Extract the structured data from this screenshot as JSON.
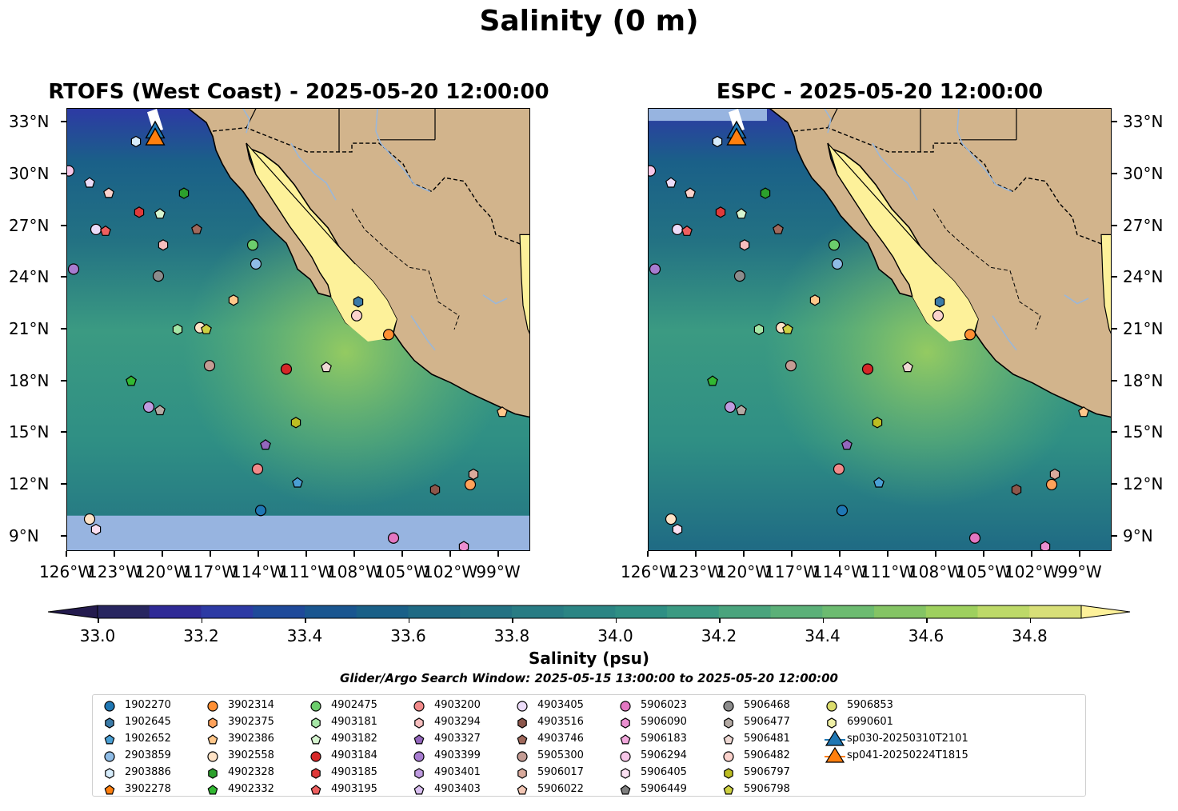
{
  "title": "Salinity (0 m)",
  "panels": [
    {
      "title": "RTOFS (West Coast) - 2025-05-20 12:00:00"
    },
    {
      "title": "ESPC - 2025-05-20 12:00:00"
    }
  ],
  "map": {
    "lat_ticks": [
      "33°N",
      "30°N",
      "27°N",
      "24°N",
      "21°N",
      "18°N",
      "15°N",
      "12°N",
      "9°N"
    ],
    "lon_ticks": [
      "126°W",
      "123°W",
      "120°W",
      "117°W",
      "114°W",
      "111°W",
      "108°W",
      "105°W",
      "102°W",
      "99°W"
    ],
    "land_color": "#d2b48c",
    "gulf_color": "#fdf19a",
    "nodata_color": "#97b4e0",
    "river_color": "#9bb7d8"
  },
  "colorbar": {
    "label": "Salinity (psu)",
    "ticks": [
      "33.0",
      "33.2",
      "33.4",
      "33.6",
      "33.8",
      "34.0",
      "34.2",
      "34.4",
      "34.6",
      "34.8"
    ],
    "colors": [
      "#282660",
      "#2f2a96",
      "#2d3aa4",
      "#1f4a9a",
      "#1a5690",
      "#1a6088",
      "#1f6a84",
      "#237283",
      "#287c84",
      "#2b8584",
      "#2f8f84",
      "#3b9a82",
      "#4aa47d",
      "#5bb078",
      "#6cbb70",
      "#84c464",
      "#9ed05e",
      "#bdd968",
      "#d8df78"
    ],
    "under_color": "#241b4e",
    "over_color": "#fdf19a"
  },
  "search_window": "Glider/Argo Search Window: 2025-05-15 13:00:00 to 2025-05-20 12:00:00",
  "legend": [
    {
      "label": "1902270",
      "color": "#1f77b4",
      "shape": "circle"
    },
    {
      "label": "1902645",
      "color": "#3b7ba8",
      "shape": "hexagon"
    },
    {
      "label": "1902652",
      "color": "#4a9fd4",
      "shape": "pentagon"
    },
    {
      "label": "2903859",
      "color": "#8fbce6",
      "shape": "circle"
    },
    {
      "label": "2903886",
      "color": "#d6ecfb",
      "shape": "hexagon"
    },
    {
      "label": "3902278",
      "color": "#ff7f0e",
      "shape": "pentagon"
    },
    {
      "label": "3902314",
      "color": "#ff8f33",
      "shape": "circle"
    },
    {
      "label": "3902375",
      "color": "#ffa25a",
      "shape": "hexagon"
    },
    {
      "label": "3902386",
      "color": "#ffc78a",
      "shape": "pentagon"
    },
    {
      "label": "3902558",
      "color": "#ffe3c6",
      "shape": "circle"
    },
    {
      "label": "4902328",
      "color": "#2ca02c",
      "shape": "hexagon"
    },
    {
      "label": "4902332",
      "color": "#32b832",
      "shape": "pentagon"
    },
    {
      "label": "4902475",
      "color": "#6ccd6c",
      "shape": "circle"
    },
    {
      "label": "4903181",
      "color": "#a6e6a6",
      "shape": "hexagon"
    },
    {
      "label": "4903182",
      "color": "#d6f5d0",
      "shape": "pentagon"
    },
    {
      "label": "4903184",
      "color": "#d62728",
      "shape": "circle"
    },
    {
      "label": "4903185",
      "color": "#e03a3a",
      "shape": "hexagon"
    },
    {
      "label": "4903195",
      "color": "#ee5f5f",
      "shape": "pentagon"
    },
    {
      "label": "4903200",
      "color": "#f28a8a",
      "shape": "circle"
    },
    {
      "label": "4903294",
      "color": "#f7bebe",
      "shape": "hexagon"
    },
    {
      "label": "4903327",
      "color": "#9467bd",
      "shape": "pentagon"
    },
    {
      "label": "4903399",
      "color": "#a77cd0",
      "shape": "circle"
    },
    {
      "label": "4903401",
      "color": "#bf9be0",
      "shape": "hexagon"
    },
    {
      "label": "4903403",
      "color": "#d9bff0",
      "shape": "pentagon"
    },
    {
      "label": "4903405",
      "color": "#ecdcf9",
      "shape": "circle"
    },
    {
      "label": "4903516",
      "color": "#8c564b",
      "shape": "hexagon"
    },
    {
      "label": "4903746",
      "color": "#a0695c",
      "shape": "pentagon"
    },
    {
      "label": "5905300",
      "color": "#c49c94",
      "shape": "circle"
    },
    {
      "label": "5906017",
      "color": "#d9aa9c",
      "shape": "hexagon"
    },
    {
      "label": "5906022",
      "color": "#f3c7b5",
      "shape": "pentagon"
    },
    {
      "label": "5906023",
      "color": "#e377c2",
      "shape": "circle"
    },
    {
      "label": "5906090",
      "color": "#ea8fd0",
      "shape": "hexagon"
    },
    {
      "label": "5906183",
      "color": "#f2a8dc",
      "shape": "pentagon"
    },
    {
      "label": "5906294",
      "color": "#f7c6e8",
      "shape": "circle"
    },
    {
      "label": "5906405",
      "color": "#fbe0f2",
      "shape": "hexagon"
    },
    {
      "label": "5906449",
      "color": "#7f7f7f",
      "shape": "pentagon"
    },
    {
      "label": "5906468",
      "color": "#8c8c8c",
      "shape": "circle"
    },
    {
      "label": "5906477",
      "color": "#b4aaa4",
      "shape": "hexagon"
    },
    {
      "label": "5906481",
      "color": "#efd9d4",
      "shape": "pentagon"
    },
    {
      "label": "5906482",
      "color": "#fbd2cc",
      "shape": "circle"
    },
    {
      "label": "5906797",
      "color": "#bcbd22",
      "shape": "hexagon"
    },
    {
      "label": "5906798",
      "color": "#cdd042",
      "shape": "pentagon"
    },
    {
      "label": "5906853",
      "color": "#dcdd6c",
      "shape": "circle"
    },
    {
      "label": "6990601",
      "color": "#eff0a6",
      "shape": "hexagon"
    },
    {
      "label": "sp030-20250310T2101",
      "color": "#1f77b4",
      "shape": "triangle"
    },
    {
      "label": "sp041-20250224T1815",
      "color": "#ff7f0e",
      "shape": "triangle"
    }
  ],
  "floats": [
    {
      "lon": -125.9,
      "lat": 30.2,
      "color": "#f7c6e8",
      "shape": "circle"
    },
    {
      "lon": -124.6,
      "lat": 29.5,
      "color": "#ecdcf9",
      "shape": "pentagon"
    },
    {
      "lon": -123.4,
      "lat": 28.9,
      "color": "#fbd2cc",
      "shape": "pentagon"
    },
    {
      "lon": -121.5,
      "lat": 27.8,
      "color": "#e03a3a",
      "shape": "hexagon"
    },
    {
      "lon": -120.2,
      "lat": 27.7,
      "color": "#d6f5d0",
      "shape": "pentagon"
    },
    {
      "lon": -118.7,
      "lat": 28.9,
      "color": "#2ca02c",
      "shape": "hexagon"
    },
    {
      "lon": -124.2,
      "lat": 26.8,
      "color": "#ecdcf9",
      "shape": "circle"
    },
    {
      "lon": -123.6,
      "lat": 26.7,
      "color": "#ee5f5f",
      "shape": "pentagon"
    },
    {
      "lon": -117.9,
      "lat": 26.8,
      "color": "#a0695c",
      "shape": "pentagon"
    },
    {
      "lon": -120.0,
      "lat": 25.9,
      "color": "#f7bebe",
      "shape": "hexagon"
    },
    {
      "lon": -125.6,
      "lat": 24.5,
      "color": "#a77cd0",
      "shape": "circle"
    },
    {
      "lon": -120.3,
      "lat": 24.1,
      "color": "#8c8c8c",
      "shape": "circle"
    },
    {
      "lon": -114.4,
      "lat": 25.9,
      "color": "#6ccd6c",
      "shape": "circle"
    },
    {
      "lon": -114.2,
      "lat": 24.8,
      "color": "#8fbce6",
      "shape": "circle"
    },
    {
      "lon": -115.6,
      "lat": 22.7,
      "color": "#ffc78a",
      "shape": "hexagon"
    },
    {
      "lon": -107.8,
      "lat": 22.6,
      "color": "#3b7ba8",
      "shape": "hexagon"
    },
    {
      "lon": -119.1,
      "lat": 21.0,
      "color": "#a6e6a6",
      "shape": "hexagon"
    },
    {
      "lon": -117.7,
      "lat": 21.1,
      "color": "#ffe3c6",
      "shape": "circle"
    },
    {
      "lon": -117.3,
      "lat": 21.0,
      "color": "#cdd042",
      "shape": "pentagon"
    },
    {
      "lon": -107.9,
      "lat": 21.8,
      "color": "#fbd2cc",
      "shape": "circle"
    },
    {
      "lon": -105.9,
      "lat": 20.7,
      "color": "#ff8f33",
      "shape": "circle"
    },
    {
      "lon": -117.1,
      "lat": 18.9,
      "color": "#c49c94",
      "shape": "circle"
    },
    {
      "lon": -112.3,
      "lat": 18.7,
      "color": "#d62728",
      "shape": "circle"
    },
    {
      "lon": -109.8,
      "lat": 18.8,
      "color": "#efd9d4",
      "shape": "pentagon"
    },
    {
      "lon": -122.0,
      "lat": 18.0,
      "color": "#32b832",
      "shape": "pentagon"
    },
    {
      "lon": -120.9,
      "lat": 16.5,
      "color": "#bf9be0",
      "shape": "circle"
    },
    {
      "lon": -120.2,
      "lat": 16.3,
      "color": "#b4aaa4",
      "shape": "pentagon"
    },
    {
      "lon": -111.7,
      "lat": 15.6,
      "color": "#bcbd22",
      "shape": "hexagon"
    },
    {
      "lon": -113.6,
      "lat": 14.3,
      "color": "#9467bd",
      "shape": "pentagon"
    },
    {
      "lon": -98.8,
      "lat": 16.2,
      "color": "#ffc78a",
      "shape": "pentagon"
    },
    {
      "lon": -114.1,
      "lat": 12.9,
      "color": "#f28a8a",
      "shape": "circle"
    },
    {
      "lon": -111.6,
      "lat": 12.1,
      "color": "#4a9fd4",
      "shape": "pentagon"
    },
    {
      "lon": -103.0,
      "lat": 11.7,
      "color": "#8c564b",
      "shape": "hexagon"
    },
    {
      "lon": -100.8,
      "lat": 12.0,
      "color": "#ffa25a",
      "shape": "circle"
    },
    {
      "lon": -100.6,
      "lat": 12.6,
      "color": "#d9aa9c",
      "shape": "hexagon"
    },
    {
      "lon": -113.9,
      "lat": 10.5,
      "color": "#1f77b4",
      "shape": "circle"
    },
    {
      "lon": -124.6,
      "lat": 10.0,
      "color": "#ffe3c6",
      "shape": "circle"
    },
    {
      "lon": -124.2,
      "lat": 9.4,
      "color": "#fbe0f2",
      "shape": "hexagon"
    },
    {
      "lon": -105.6,
      "lat": 8.9,
      "color": "#e377c2",
      "shape": "circle"
    },
    {
      "lon": -101.2,
      "lat": 8.4,
      "color": "#ea8fd0",
      "shape": "hexagon"
    },
    {
      "lon": -121.7,
      "lat": 31.9,
      "color": "#d6ecfb",
      "shape": "hexagon"
    }
  ],
  "gliders": [
    {
      "lon": -120.5,
      "lat": 32.5,
      "color": "#1f77b4",
      "shape": "triangle"
    },
    {
      "lon": -120.5,
      "lat": 32.1,
      "color": "#ff7f0e",
      "shape": "triangle"
    }
  ]
}
